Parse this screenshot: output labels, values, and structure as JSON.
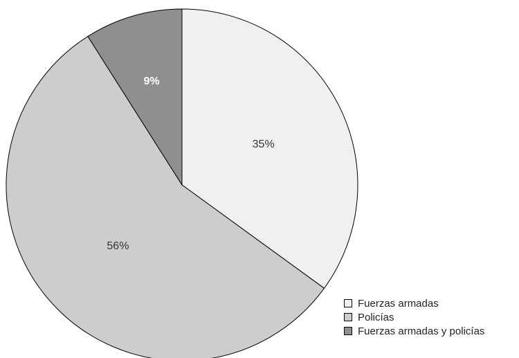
{
  "chart_data": {
    "type": "pie",
    "categories": [
      "Fuerzas armadas",
      "Policías",
      "Fuerzas armadas y policías"
    ],
    "values": [
      35,
      56,
      9
    ],
    "value_labels": [
      "35%",
      "56%",
      "9%"
    ],
    "colors": [
      "#f0f0f0",
      "#cdcdcd",
      "#8f8f8f"
    ],
    "legend_placement": "bottom-right",
    "start": "top",
    "direction": "clockwise"
  }
}
